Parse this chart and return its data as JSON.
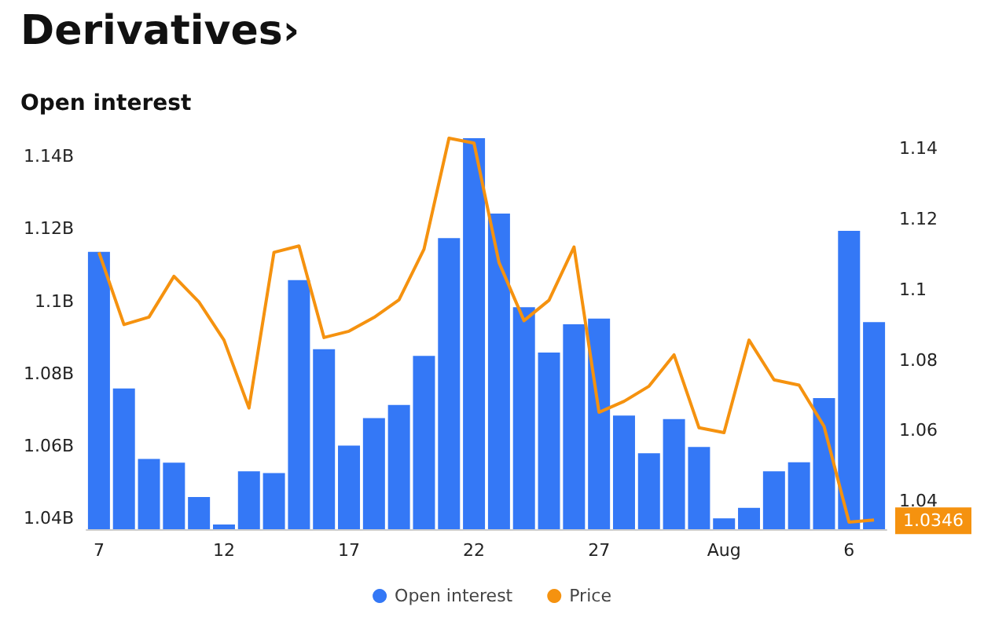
{
  "chart_data": {
    "type": "bar",
    "title": "Derivatives›",
    "subtitle": "Open interest",
    "categories": [
      "7",
      null,
      null,
      null,
      null,
      "12",
      null,
      null,
      null,
      null,
      "17",
      null,
      null,
      null,
      null,
      "22",
      null,
      null,
      null,
      null,
      "27",
      null,
      null,
      null,
      null,
      "Aug",
      null,
      null,
      null,
      null,
      "6",
      null
    ],
    "series": [
      {
        "name": "Open interest",
        "color": "#3478f6",
        "values": [
          1.1136,
          1.0759,
          1.0564,
          1.0554,
          1.0459,
          1.0383,
          1.053,
          1.0525,
          1.1058,
          1.0867,
          1.0601,
          1.0677,
          1.0713,
          1.0849,
          1.1174,
          1.145,
          1.1242,
          1.0983,
          1.0858,
          1.0936,
          1.0952,
          1.0684,
          1.058,
          1.0674,
          1.0597,
          1.04,
          1.0429,
          1.053,
          1.0555,
          1.0732,
          1.1194,
          1.0942
        ]
      },
      {
        "name": "Price",
        "type": "line",
        "axis": "y2",
        "color": "#f5920f",
        "values": [
          1.1106,
          1.0901,
          1.0922,
          1.1038,
          1.0965,
          1.0857,
          1.0664,
          1.1106,
          1.1124,
          1.0864,
          1.0882,
          1.0921,
          1.0971,
          1.1115,
          1.143,
          1.1416,
          1.1077,
          1.0912,
          1.097,
          1.1121,
          1.0652,
          1.0683,
          1.0726,
          1.0815,
          1.0608,
          1.0594,
          1.0857,
          1.0744,
          1.0729,
          1.0612,
          1.034,
          1.0346
        ]
      }
    ],
    "ylim": [
      1.037,
      1.145
    ],
    "yticks": [
      {
        "value": 1.04,
        "label": "1.04B"
      },
      {
        "value": 1.06,
        "label": "1.06B"
      },
      {
        "value": 1.08,
        "label": "1.08B"
      },
      {
        "value": 1.1,
        "label": "1.1B"
      },
      {
        "value": 1.12,
        "label": "1.12B"
      },
      {
        "value": 1.14,
        "label": "1.14B"
      }
    ],
    "y2lim": [
      1.032,
      1.143
    ],
    "y2ticks": [
      1.04,
      1.06,
      1.08,
      1.1,
      1.12,
      1.14
    ],
    "annotations": [
      "1.0346"
    ],
    "marker": "none",
    "grid": false,
    "legend": "bottom"
  }
}
